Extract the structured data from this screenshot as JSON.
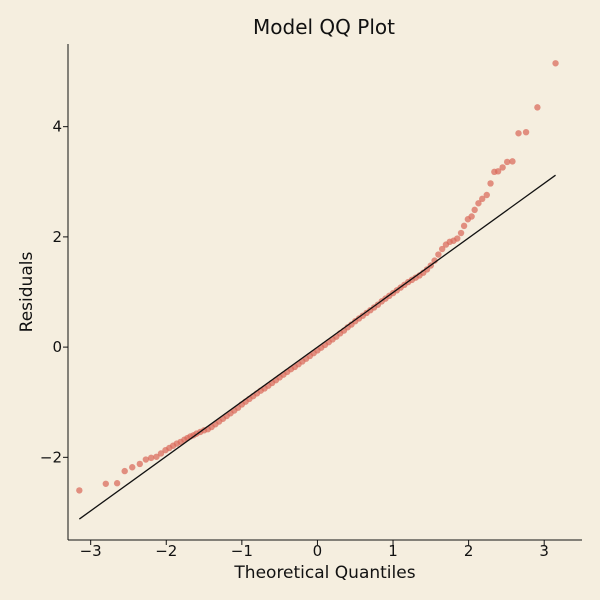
{
  "chart_data": {
    "type": "scatter",
    "title": "Model QQ Plot",
    "xlabel": "Theoretical Quantiles",
    "ylabel": "Residuals",
    "xlim": [
      -3.3,
      3.5
    ],
    "ylim": [
      -3.5,
      5.5
    ],
    "xticks": [
      -3,
      -2,
      -1,
      0,
      1,
      2,
      3
    ],
    "yticks": [
      -2,
      0,
      2,
      4
    ],
    "xtick_labels": [
      "−3",
      "−2",
      "−1",
      "0",
      "1",
      "2",
      "3"
    ],
    "ytick_labels": [
      "−2",
      "0",
      "2",
      "4"
    ],
    "grid": false,
    "reference_line": {
      "x": [
        -3.15,
        3.15
      ],
      "y": [
        -3.12,
        3.12
      ]
    },
    "series": [
      {
        "color": "#d96a5a",
        "points": [
          [
            -3.15,
            -2.6
          ],
          [
            -2.8,
            -2.48
          ],
          [
            -2.65,
            -2.47
          ],
          [
            -2.55,
            -2.25
          ],
          [
            -2.45,
            -2.18
          ],
          [
            -2.35,
            -2.12
          ],
          [
            -2.27,
            -2.04
          ],
          [
            -2.2,
            -2.01
          ],
          [
            -2.13,
            -1.99
          ],
          [
            -2.07,
            -1.93
          ],
          [
            -2.01,
            -1.87
          ],
          [
            -1.96,
            -1.83
          ],
          [
            -1.91,
            -1.79
          ],
          [
            -1.86,
            -1.75
          ],
          [
            -1.81,
            -1.72
          ],
          [
            -1.76,
            -1.68
          ],
          [
            -1.72,
            -1.65
          ],
          [
            -1.68,
            -1.62
          ],
          [
            -1.64,
            -1.6
          ],
          [
            -1.6,
            -1.57
          ],
          [
            -1.55,
            -1.54
          ],
          [
            -1.5,
            -1.51
          ],
          [
            -1.45,
            -1.49
          ],
          [
            -1.4,
            -1.45
          ],
          [
            -1.35,
            -1.4
          ],
          [
            -1.3,
            -1.35
          ],
          [
            -1.25,
            -1.3
          ],
          [
            -1.2,
            -1.25
          ],
          [
            -1.15,
            -1.2
          ],
          [
            -1.1,
            -1.15
          ],
          [
            -1.05,
            -1.1
          ],
          [
            -1.0,
            -1.04
          ],
          [
            -0.95,
            -0.99
          ],
          [
            -0.9,
            -0.94
          ],
          [
            -0.85,
            -0.89
          ],
          [
            -0.8,
            -0.84
          ],
          [
            -0.75,
            -0.79
          ],
          [
            -0.7,
            -0.75
          ],
          [
            -0.65,
            -0.7
          ],
          [
            -0.6,
            -0.65
          ],
          [
            -0.55,
            -0.6
          ],
          [
            -0.5,
            -0.55
          ],
          [
            -0.45,
            -0.5
          ],
          [
            -0.4,
            -0.45
          ],
          [
            -0.35,
            -0.4
          ],
          [
            -0.3,
            -0.36
          ],
          [
            -0.25,
            -0.31
          ],
          [
            -0.2,
            -0.26
          ],
          [
            -0.15,
            -0.21
          ],
          [
            -0.1,
            -0.16
          ],
          [
            -0.05,
            -0.11
          ],
          [
            0.0,
            -0.06
          ],
          [
            0.05,
            -0.01
          ],
          [
            0.1,
            0.04
          ],
          [
            0.15,
            0.09
          ],
          [
            0.2,
            0.14
          ],
          [
            0.25,
            0.19
          ],
          [
            0.3,
            0.25
          ],
          [
            0.35,
            0.3
          ],
          [
            0.4,
            0.36
          ],
          [
            0.45,
            0.41
          ],
          [
            0.5,
            0.47
          ],
          [
            0.55,
            0.52
          ],
          [
            0.6,
            0.57
          ],
          [
            0.65,
            0.62
          ],
          [
            0.7,
            0.67
          ],
          [
            0.75,
            0.72
          ],
          [
            0.8,
            0.77
          ],
          [
            0.85,
            0.83
          ],
          [
            0.9,
            0.88
          ],
          [
            0.95,
            0.93
          ],
          [
            1.0,
            0.98
          ],
          [
            1.05,
            1.03
          ],
          [
            1.1,
            1.08
          ],
          [
            1.15,
            1.13
          ],
          [
            1.2,
            1.18
          ],
          [
            1.25,
            1.22
          ],
          [
            1.3,
            1.26
          ],
          [
            1.35,
            1.3
          ],
          [
            1.4,
            1.35
          ],
          [
            1.45,
            1.41
          ],
          [
            1.5,
            1.48
          ],
          [
            1.55,
            1.57
          ],
          [
            1.6,
            1.68
          ],
          [
            1.65,
            1.78
          ],
          [
            1.7,
            1.86
          ],
          [
            1.75,
            1.91
          ],
          [
            1.8,
            1.93
          ],
          [
            1.85,
            1.97
          ],
          [
            1.9,
            2.07
          ],
          [
            1.94,
            2.2
          ],
          [
            1.99,
            2.32
          ],
          [
            2.04,
            2.37
          ],
          [
            2.08,
            2.49
          ],
          [
            2.13,
            2.61
          ],
          [
            2.18,
            2.69
          ],
          [
            2.24,
            2.76
          ],
          [
            2.29,
            2.97
          ],
          [
            2.34,
            3.18
          ],
          [
            2.39,
            3.19
          ],
          [
            2.45,
            3.26
          ],
          [
            2.51,
            3.36
          ],
          [
            2.58,
            3.37
          ],
          [
            2.66,
            3.88
          ],
          [
            2.76,
            3.9
          ],
          [
            2.91,
            4.35
          ],
          [
            3.15,
            5.15
          ]
        ]
      }
    ]
  }
}
